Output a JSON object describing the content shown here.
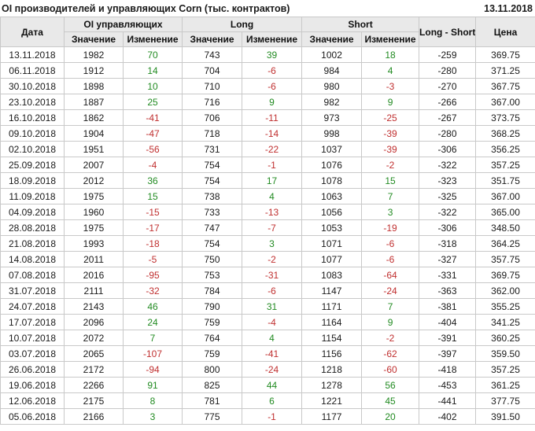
{
  "header": {
    "title": "OI производителей и управляющих Corn (тыс. контрактов)",
    "date": "13.11.2018"
  },
  "table": {
    "headers": {
      "date": "Дата",
      "oi_group": "OI управляющих",
      "long_group": "Long",
      "short_group": "Short",
      "long_short": "Long - Short",
      "price": "Цена",
      "value": "Значение",
      "change": "Изменение"
    },
    "colors": {
      "positive": "#228B22",
      "negative": "#C03030",
      "header_bg": "#E9E9E9",
      "border": "#C9C9C9"
    },
    "rows": [
      {
        "date": "13.11.2018",
        "oi": 1982,
        "oi_chg": 70,
        "long": 743,
        "long_chg": 39,
        "short": 1002,
        "short_chg": 18,
        "long_short": -259,
        "price": "369.75"
      },
      {
        "date": "06.11.2018",
        "oi": 1912,
        "oi_chg": 14,
        "long": 704,
        "long_chg": -6,
        "short": 984,
        "short_chg": 4,
        "long_short": -280,
        "price": "371.25"
      },
      {
        "date": "30.10.2018",
        "oi": 1898,
        "oi_chg": 10,
        "long": 710,
        "long_chg": -6,
        "short": 980,
        "short_chg": -3,
        "long_short": -270,
        "price": "367.75"
      },
      {
        "date": "23.10.2018",
        "oi": 1887,
        "oi_chg": 25,
        "long": 716,
        "long_chg": 9,
        "short": 982,
        "short_chg": 9,
        "long_short": -266,
        "price": "367.00"
      },
      {
        "date": "16.10.2018",
        "oi": 1862,
        "oi_chg": -41,
        "long": 706,
        "long_chg": -11,
        "short": 973,
        "short_chg": -25,
        "long_short": -267,
        "price": "373.75"
      },
      {
        "date": "09.10.2018",
        "oi": 1904,
        "oi_chg": -47,
        "long": 718,
        "long_chg": -14,
        "short": 998,
        "short_chg": -39,
        "long_short": -280,
        "price": "368.25"
      },
      {
        "date": "02.10.2018",
        "oi": 1951,
        "oi_chg": -56,
        "long": 731,
        "long_chg": -22,
        "short": 1037,
        "short_chg": -39,
        "long_short": -306,
        "price": "356.25"
      },
      {
        "date": "25.09.2018",
        "oi": 2007,
        "oi_chg": -4,
        "long": 754,
        "long_chg": -1,
        "short": 1076,
        "short_chg": -2,
        "long_short": -322,
        "price": "357.25"
      },
      {
        "date": "18.09.2018",
        "oi": 2012,
        "oi_chg": 36,
        "long": 754,
        "long_chg": 17,
        "short": 1078,
        "short_chg": 15,
        "long_short": -323,
        "price": "351.75"
      },
      {
        "date": "11.09.2018",
        "oi": 1975,
        "oi_chg": 15,
        "long": 738,
        "long_chg": 4,
        "short": 1063,
        "short_chg": 7,
        "long_short": -325,
        "price": "367.00"
      },
      {
        "date": "04.09.2018",
        "oi": 1960,
        "oi_chg": -15,
        "long": 733,
        "long_chg": -13,
        "short": 1056,
        "short_chg": 3,
        "long_short": -322,
        "price": "365.00"
      },
      {
        "date": "28.08.2018",
        "oi": 1975,
        "oi_chg": -17,
        "long": 747,
        "long_chg": -7,
        "short": 1053,
        "short_chg": -19,
        "long_short": -306,
        "price": "348.50"
      },
      {
        "date": "21.08.2018",
        "oi": 1993,
        "oi_chg": -18,
        "long": 754,
        "long_chg": 3,
        "short": 1071,
        "short_chg": -6,
        "long_short": -318,
        "price": "364.25"
      },
      {
        "date": "14.08.2018",
        "oi": 2011,
        "oi_chg": -5,
        "long": 750,
        "long_chg": -2,
        "short": 1077,
        "short_chg": -6,
        "long_short": -327,
        "price": "357.75"
      },
      {
        "date": "07.08.2018",
        "oi": 2016,
        "oi_chg": -95,
        "long": 753,
        "long_chg": -31,
        "short": 1083,
        "short_chg": -64,
        "long_short": -331,
        "price": "369.75"
      },
      {
        "date": "31.07.2018",
        "oi": 2111,
        "oi_chg": -32,
        "long": 784,
        "long_chg": -6,
        "short": 1147,
        "short_chg": -24,
        "long_short": -363,
        "price": "362.00"
      },
      {
        "date": "24.07.2018",
        "oi": 2143,
        "oi_chg": 46,
        "long": 790,
        "long_chg": 31,
        "short": 1171,
        "short_chg": 7,
        "long_short": -381,
        "price": "355.25"
      },
      {
        "date": "17.07.2018",
        "oi": 2096,
        "oi_chg": 24,
        "long": 759,
        "long_chg": -4,
        "short": 1164,
        "short_chg": 9,
        "long_short": -404,
        "price": "341.25"
      },
      {
        "date": "10.07.2018",
        "oi": 2072,
        "oi_chg": 7,
        "long": 764,
        "long_chg": 4,
        "short": 1154,
        "short_chg": -2,
        "long_short": -391,
        "price": "360.25"
      },
      {
        "date": "03.07.2018",
        "oi": 2065,
        "oi_chg": -107,
        "long": 759,
        "long_chg": -41,
        "short": 1156,
        "short_chg": -62,
        "long_short": -397,
        "price": "359.50"
      },
      {
        "date": "26.06.2018",
        "oi": 2172,
        "oi_chg": -94,
        "long": 800,
        "long_chg": -24,
        "short": 1218,
        "short_chg": -60,
        "long_short": -418,
        "price": "357.25"
      },
      {
        "date": "19.06.2018",
        "oi": 2266,
        "oi_chg": 91,
        "long": 825,
        "long_chg": 44,
        "short": 1278,
        "short_chg": 56,
        "long_short": -453,
        "price": "361.25"
      },
      {
        "date": "12.06.2018",
        "oi": 2175,
        "oi_chg": 8,
        "long": 781,
        "long_chg": 6,
        "short": 1221,
        "short_chg": 45,
        "long_short": -441,
        "price": "377.75"
      },
      {
        "date": "05.06.2018",
        "oi": 2166,
        "oi_chg": 3,
        "long": 775,
        "long_chg": -1,
        "short": 1177,
        "short_chg": 20,
        "long_short": -402,
        "price": "391.50"
      }
    ]
  }
}
